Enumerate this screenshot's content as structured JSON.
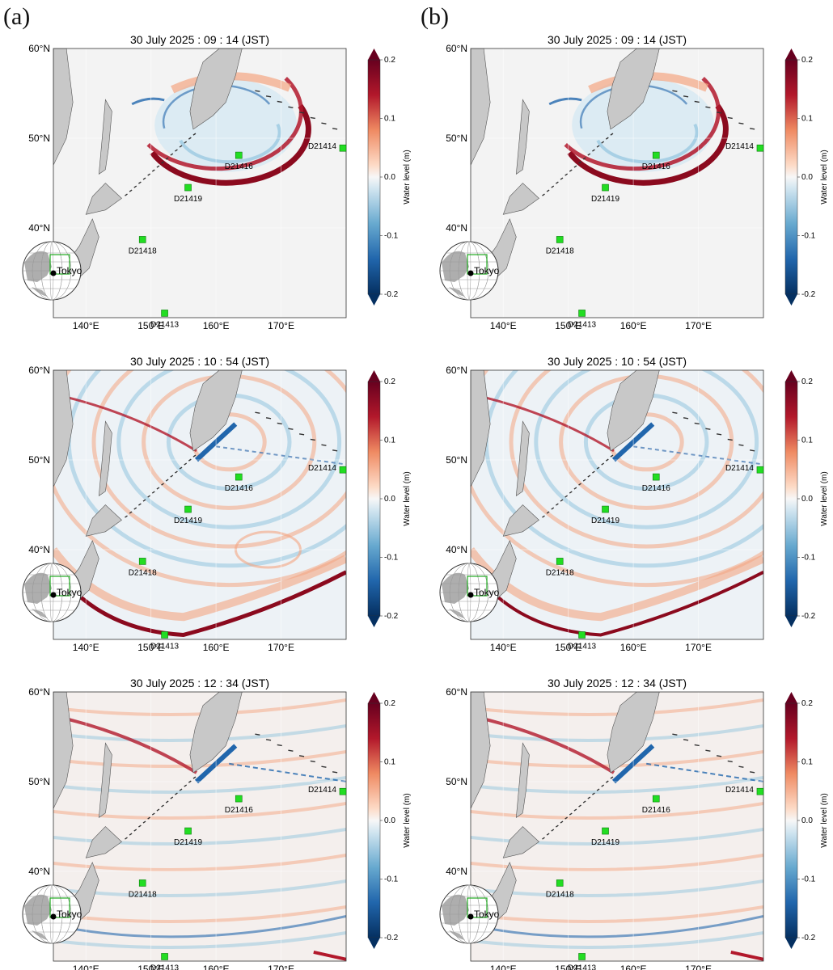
{
  "columns": [
    {
      "label": "(a)"
    },
    {
      "label": "(b)"
    }
  ],
  "times": [
    "30 July 2025 :  09 : 14 (JST)",
    "30 July 2025 :  10 : 54 (JST)",
    "30 July 2025 :  12 : 34 (JST)"
  ],
  "axes": {
    "lat_ticks": [
      "60°N",
      "50°N",
      "40°N"
    ],
    "lon_ticks": [
      "140°E",
      "150°E",
      "160°E",
      "170°E"
    ],
    "lat_range": [
      30,
      60
    ],
    "lon_range": [
      135,
      180
    ]
  },
  "colorbar": {
    "label": "Water level (m)",
    "ticks": [
      "0.2",
      "0.1",
      "0.0",
      "-0.1",
      "-0.2"
    ],
    "range": [
      -0.2,
      0.2
    ],
    "colors": {
      "max": "#67001f",
      "mid": "#f7f7f7",
      "min": "#053061"
    }
  },
  "inset": {
    "label": "Tokyo"
  },
  "buoys": [
    {
      "id": "D21414",
      "lon": 179.5,
      "lat": 48.9
    },
    {
      "id": "D21416",
      "lon": 163.5,
      "lat": 48.1
    },
    {
      "id": "D21419",
      "lon": 155.7,
      "lat": 44.5
    },
    {
      "id": "D21418",
      "lon": 148.7,
      "lat": 38.7
    },
    {
      "id": "D21413",
      "lon": 152.1,
      "lat": 30.5
    }
  ],
  "colors": {
    "land": "#c8c8c8",
    "ocean": "#f3f3f3",
    "buoy": "#22dd22"
  }
}
